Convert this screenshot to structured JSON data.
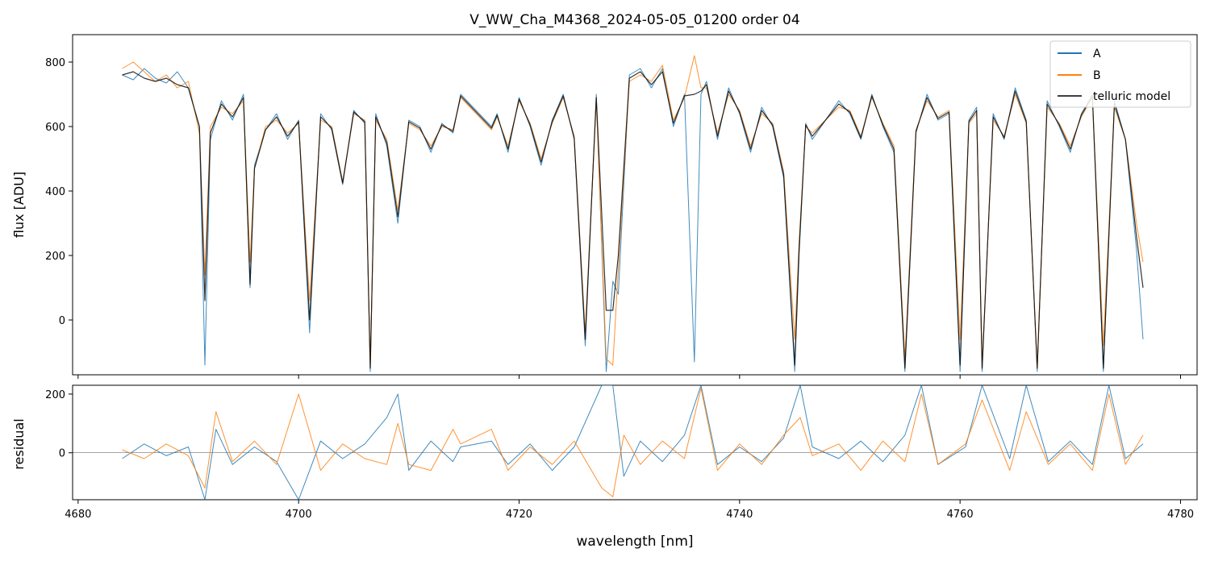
{
  "figure": {
    "title": "V_WW_Cha_M4368_2024-05-05_01200  order 04"
  },
  "colors": {
    "A": "#1f77b4",
    "B": "#ff7f0e",
    "telluric": "#000000"
  },
  "chart_data": [
    {
      "type": "line",
      "panel": "top",
      "title": "V_WW_Cha_M4368_2024-05-05_01200  order 04",
      "xlabel": "",
      "ylabel": "flux [ADU]",
      "xlim": [
        4679.5,
        4781.5
      ],
      "ylim": [
        -170,
        885
      ],
      "xticks": [
        4680,
        4700,
        4720,
        4740,
        4760,
        4780
      ],
      "yticks": [
        0,
        200,
        400,
        600,
        800
      ],
      "legend": {
        "position": "top-right",
        "entries": [
          "A",
          "B",
          "telluric model"
        ]
      },
      "grid": false,
      "series": [
        {
          "name": "A",
          "x": [
            4684.0,
            4685.0,
            4686.0,
            4687.0,
            4688.0,
            4689.0,
            4690.0,
            4691.0,
            4691.5,
            4692.0,
            4693.0,
            4694.0,
            4695.0,
            4695.6,
            4696.0,
            4697.0,
            4698.0,
            4699.0,
            4700.0,
            4701.0,
            4702.0,
            4703.0,
            4704.0,
            4705.0,
            4706.0,
            4706.5,
            4707.0,
            4708.0,
            4709.0,
            4710.0,
            4711.0,
            4712.0,
            4713.0,
            4714.0,
            4714.7,
            4717.5,
            4718.0,
            4719.0,
            4720.0,
            4721.0,
            4722.0,
            4723.0,
            4724.0,
            4725.0,
            4726.0,
            4727.0,
            4727.9,
            4728.5,
            4729.0,
            4730.0,
            4731.0,
            4732.0,
            4733.0,
            4734.0,
            4735.0,
            4735.9,
            4736.5,
            4737.0,
            4738.0,
            4739.0,
            4740.0,
            4741.0,
            4742.0,
            4743.0,
            4744.0,
            4745.0,
            4745.4,
            4746.0,
            4746.6,
            4749.0,
            4750.0,
            4751.0,
            4752.0,
            4753.0,
            4754.0,
            4755.0,
            4756.0,
            4757.0,
            4758.0,
            4759.0,
            4760.0,
            4760.8,
            4761.5,
            4762.0,
            4763.0,
            4764.0,
            4765.0,
            4766.0,
            4767.0,
            4767.9,
            4769.0,
            4770.0,
            4771.0,
            4772.0,
            4773.0,
            4774.0,
            4775.0,
            4776.0,
            4776.6
          ],
          "y": [
            760,
            745,
            780,
            750,
            735,
            770,
            720,
            600,
            -140,
            560,
            680,
            620,
            700,
            100,
            480,
            590,
            640,
            560,
            620,
            -40,
            640,
            590,
            420,
            650,
            610,
            -160,
            640,
            540,
            300,
            620,
            600,
            520,
            610,
            580,
            700,
            600,
            640,
            520,
            690,
            600,
            480,
            620,
            700,
            560,
            -80,
            700,
            -160,
            120,
            80,
            760,
            780,
            720,
            780,
            600,
            700,
            -130,
            700,
            740,
            560,
            720,
            640,
            520,
            660,
            600,
            440,
            -160,
            200,
            610,
            560,
            680,
            640,
            560,
            700,
            600,
            520,
            -160,
            580,
            700,
            620,
            640,
            -160,
            620,
            660,
            -160,
            640,
            560,
            720,
            620,
            -160,
            680,
            600,
            520,
            640,
            700,
            -160,
            680,
            560,
            220,
            -60
          ]
        },
        {
          "name": "B",
          "x": [
            4684.0,
            4685.0,
            4686.0,
            4687.0,
            4688.0,
            4689.0,
            4690.0,
            4691.0,
            4691.5,
            4692.0,
            4693.0,
            4694.0,
            4695.0,
            4695.6,
            4696.0,
            4697.0,
            4698.0,
            4699.0,
            4700.0,
            4701.0,
            4702.0,
            4703.0,
            4704.0,
            4705.0,
            4706.0,
            4706.5,
            4707.0,
            4708.0,
            4709.0,
            4710.0,
            4711.0,
            4712.0,
            4713.0,
            4714.0,
            4714.7,
            4717.5,
            4718.0,
            4719.0,
            4720.0,
            4721.0,
            4722.0,
            4723.0,
            4724.0,
            4725.0,
            4726.0,
            4727.0,
            4727.9,
            4728.5,
            4729.0,
            4730.0,
            4731.0,
            4732.0,
            4733.0,
            4734.0,
            4735.0,
            4735.9,
            4736.5,
            4737.0,
            4738.0,
            4739.0,
            4740.0,
            4741.0,
            4742.0,
            4743.0,
            4744.0,
            4745.0,
            4745.4,
            4746.0,
            4746.6,
            4749.0,
            4750.0,
            4751.0,
            4752.0,
            4753.0,
            4754.0,
            4755.0,
            4756.0,
            4757.0,
            4758.0,
            4759.0,
            4760.0,
            4760.8,
            4761.5,
            4762.0,
            4763.0,
            4764.0,
            4765.0,
            4766.0,
            4767.0,
            4767.9,
            4769.0,
            4770.0,
            4771.0,
            4772.0,
            4773.0,
            4774.0,
            4775.0,
            4776.0,
            4776.6
          ],
          "y": [
            780,
            800,
            770,
            740,
            760,
            720,
            740,
            580,
            140,
            600,
            660,
            640,
            680,
            180,
            470,
            600,
            620,
            580,
            610,
            60,
            620,
            600,
            430,
            640,
            620,
            -140,
            620,
            560,
            340,
            610,
            590,
            540,
            600,
            590,
            690,
            590,
            630,
            540,
            680,
            610,
            500,
            610,
            690,
            570,
            -40,
            680,
            -120,
            -140,
            160,
            740,
            760,
            740,
            790,
            620,
            690,
            820,
            720,
            720,
            580,
            700,
            650,
            540,
            640,
            610,
            460,
            -60,
            240,
            600,
            580,
            660,
            650,
            570,
            690,
            610,
            540,
            -120,
            590,
            680,
            630,
            650,
            -60,
            610,
            640,
            -140,
            620,
            570,
            700,
            610,
            -150,
            660,
            610,
            540,
            630,
            690,
            -80,
            660,
            560,
            300,
            180
          ]
        },
        {
          "name": "telluric model",
          "x": [
            4684.0,
            4685.0,
            4686.0,
            4687.0,
            4688.0,
            4689.0,
            4690.0,
            4691.0,
            4691.5,
            4692.0,
            4693.0,
            4694.0,
            4695.0,
            4695.6,
            4696.0,
            4697.0,
            4698.0,
            4699.0,
            4700.0,
            4701.0,
            4702.0,
            4703.0,
            4704.0,
            4705.0,
            4706.0,
            4706.5,
            4707.0,
            4708.0,
            4709.0,
            4710.0,
            4711.0,
            4712.0,
            4713.0,
            4714.0,
            4714.7,
            4717.5,
            4718.0,
            4719.0,
            4720.0,
            4721.0,
            4722.0,
            4723.0,
            4724.0,
            4725.0,
            4726.0,
            4727.0,
            4727.9,
            4728.5,
            4729.0,
            4730.0,
            4731.0,
            4732.0,
            4733.0,
            4734.0,
            4735.0,
            4735.9,
            4736.5,
            4737.0,
            4738.0,
            4739.0,
            4740.0,
            4741.0,
            4742.0,
            4743.0,
            4744.0,
            4745.0,
            4745.4,
            4746.0,
            4746.6,
            4749.0,
            4750.0,
            4751.0,
            4752.0,
            4753.0,
            4754.0,
            4755.0,
            4756.0,
            4757.0,
            4758.0,
            4759.0,
            4760.0,
            4760.8,
            4761.5,
            4762.0,
            4763.0,
            4764.0,
            4765.0,
            4766.0,
            4767.0,
            4767.9,
            4769.0,
            4770.0,
            4771.0,
            4772.0,
            4773.0,
            4774.0,
            4775.0,
            4776.0,
            4776.6
          ],
          "y": [
            760,
            770,
            750,
            740,
            750,
            730,
            720,
            600,
            60,
            580,
            670,
            630,
            690,
            110,
            470,
            590,
            630,
            570,
            615,
            0,
            630,
            595,
            425,
            645,
            615,
            -150,
            630,
            550,
            320,
            615,
            595,
            530,
            605,
            585,
            695,
            595,
            635,
            530,
            685,
            605,
            490,
            615,
            695,
            565,
            -60,
            690,
            30,
            30,
            200,
            750,
            770,
            730,
            770,
            610,
            695,
            700,
            710,
            730,
            570,
            710,
            645,
            530,
            650,
            605,
            450,
            -140,
            220,
            605,
            570,
            670,
            645,
            565,
            695,
            605,
            530,
            -150,
            585,
            690,
            625,
            645,
            -140,
            615,
            650,
            -150,
            630,
            565,
            710,
            615,
            -150,
            670,
            605,
            530,
            635,
            695,
            -150,
            670,
            560,
            260,
            100
          ]
        }
      ]
    },
    {
      "type": "line",
      "panel": "bottom",
      "title": "",
      "xlabel": "wavelength [nm]",
      "ylabel": "residual",
      "xlim": [
        4679.5,
        4781.5
      ],
      "ylim": [
        -160,
        230
      ],
      "xticks": [
        4680,
        4700,
        4720,
        4740,
        4760,
        4780
      ],
      "yticks": [
        0,
        200
      ],
      "reference_line": 0,
      "grid": false,
      "series": [
        {
          "name": "A",
          "x": [
            4684.0,
            4686.0,
            4688.0,
            4690.0,
            4691.5,
            4692.5,
            4694.0,
            4696.0,
            4698.0,
            4700.0,
            4702.0,
            4704.0,
            4706.0,
            4708.0,
            4709.0,
            4710.0,
            4712.0,
            4714.0,
            4714.7,
            4717.5,
            4719.0,
            4721.0,
            4723.0,
            4725.0,
            4727.5,
            4728.5,
            4729.5,
            4731.0,
            4733.0,
            4735.0,
            4736.5,
            4738.0,
            4740.0,
            4742.0,
            4744.0,
            4745.5,
            4746.6,
            4749.0,
            4751.0,
            4753.0,
            4755.0,
            4756.5,
            4758.0,
            4760.5,
            4762.0,
            4764.5,
            4766.0,
            4768.0,
            4770.0,
            4772.0,
            4773.5,
            4775.0,
            4776.6
          ],
          "y": [
            -20,
            30,
            -10,
            20,
            -160,
            80,
            -40,
            20,
            -30,
            -160,
            40,
            -20,
            30,
            120,
            200,
            -60,
            40,
            -30,
            20,
            40,
            -40,
            30,
            -60,
            20,
            230,
            230,
            -80,
            40,
            -30,
            60,
            230,
            -40,
            20,
            -30,
            50,
            230,
            20,
            -20,
            40,
            -30,
            60,
            230,
            -40,
            20,
            230,
            -20,
            230,
            -30,
            40,
            -40,
            230,
            -20,
            30
          ]
        },
        {
          "name": "B",
          "x": [
            4684.0,
            4686.0,
            4688.0,
            4690.0,
            4691.5,
            4692.5,
            4694.0,
            4696.0,
            4698.0,
            4700.0,
            4702.0,
            4704.0,
            4706.0,
            4708.0,
            4709.0,
            4710.0,
            4712.0,
            4714.0,
            4714.7,
            4717.5,
            4719.0,
            4721.0,
            4723.0,
            4725.0,
            4727.5,
            4728.5,
            4729.5,
            4731.0,
            4733.0,
            4735.0,
            4736.5,
            4738.0,
            4740.0,
            4742.0,
            4744.0,
            4745.5,
            4746.6,
            4749.0,
            4751.0,
            4753.0,
            4755.0,
            4756.5,
            4758.0,
            4760.5,
            4762.0,
            4764.5,
            4766.0,
            4768.0,
            4770.0,
            4772.0,
            4773.5,
            4775.0,
            4776.6
          ],
          "y": [
            10,
            -20,
            30,
            -10,
            -120,
            140,
            -30,
            40,
            -40,
            200,
            -60,
            30,
            -20,
            -40,
            100,
            -40,
            -60,
            80,
            30,
            80,
            -60,
            20,
            -40,
            40,
            -120,
            -150,
            60,
            -40,
            40,
            -20,
            220,
            -60,
            30,
            -40,
            60,
            120,
            -10,
            30,
            -60,
            40,
            -30,
            200,
            -40,
            30,
            180,
            -60,
            140,
            -40,
            30,
            -60,
            200,
            -40,
            60
          ]
        }
      ]
    }
  ]
}
